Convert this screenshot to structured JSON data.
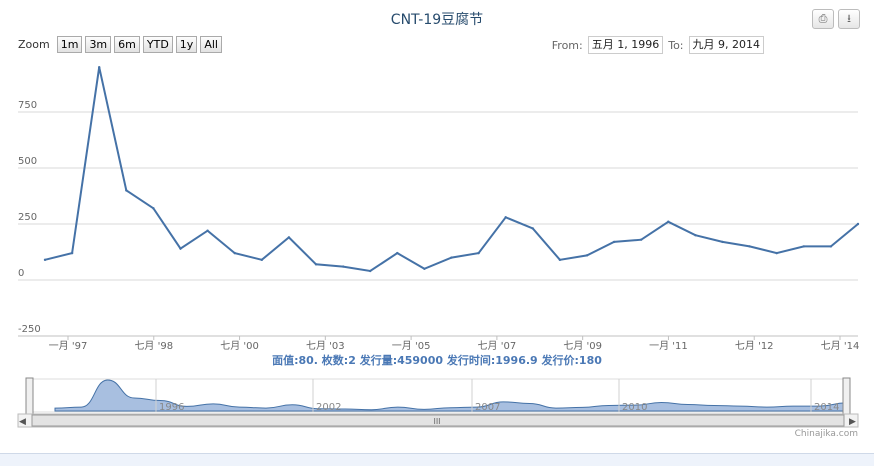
{
  "header": {
    "title": "CNT-19豆腐节",
    "print_icon": "print-icon",
    "download_icon": "download-icon"
  },
  "zoom": {
    "label": "Zoom",
    "buttons": [
      "1m",
      "3m",
      "6m",
      "YTD",
      "1y",
      "All"
    ]
  },
  "range": {
    "from_label": "From:",
    "from_value": "五月 1, 1996",
    "to_label": "To:",
    "to_value": "九月 9, 2014"
  },
  "info_line": "面值:80. 枚数:2 发行量:459000 发行时间:1996.9 发行价:180",
  "credit": "Chinajika.com",
  "navigator": {
    "year_labels": [
      "1996",
      "2002",
      "2007",
      "2010",
      "2014"
    ],
    "scroll_mark": "III"
  },
  "colors": {
    "line": "#4572a7",
    "navigator_fill": "#a8bfe0",
    "grid": "#d8d8d8",
    "title": "#274b6d"
  },
  "chart_data": {
    "type": "line",
    "title": "CNT-19豆腐节",
    "ylim": [
      -250,
      1000
    ],
    "y_ticks": [
      -250,
      0,
      250,
      500,
      750
    ],
    "x_tick_labels": [
      "一月 '97",
      "七月 '98",
      "七月 '00",
      "七月 '03",
      "一月 '05",
      "七月 '07",
      "七月 '09",
      "一月 '11",
      "七月 '12",
      "七月 '14"
    ],
    "grid": true,
    "series": [
      {
        "values": [
          90,
          120,
          950,
          400,
          320,
          140,
          220,
          120,
          90,
          190,
          70,
          60,
          40,
          120,
          50,
          100,
          120,
          280,
          230,
          90,
          110,
          170,
          180,
          260,
          200,
          170,
          150,
          120,
          150,
          150,
          250
        ]
      }
    ]
  }
}
